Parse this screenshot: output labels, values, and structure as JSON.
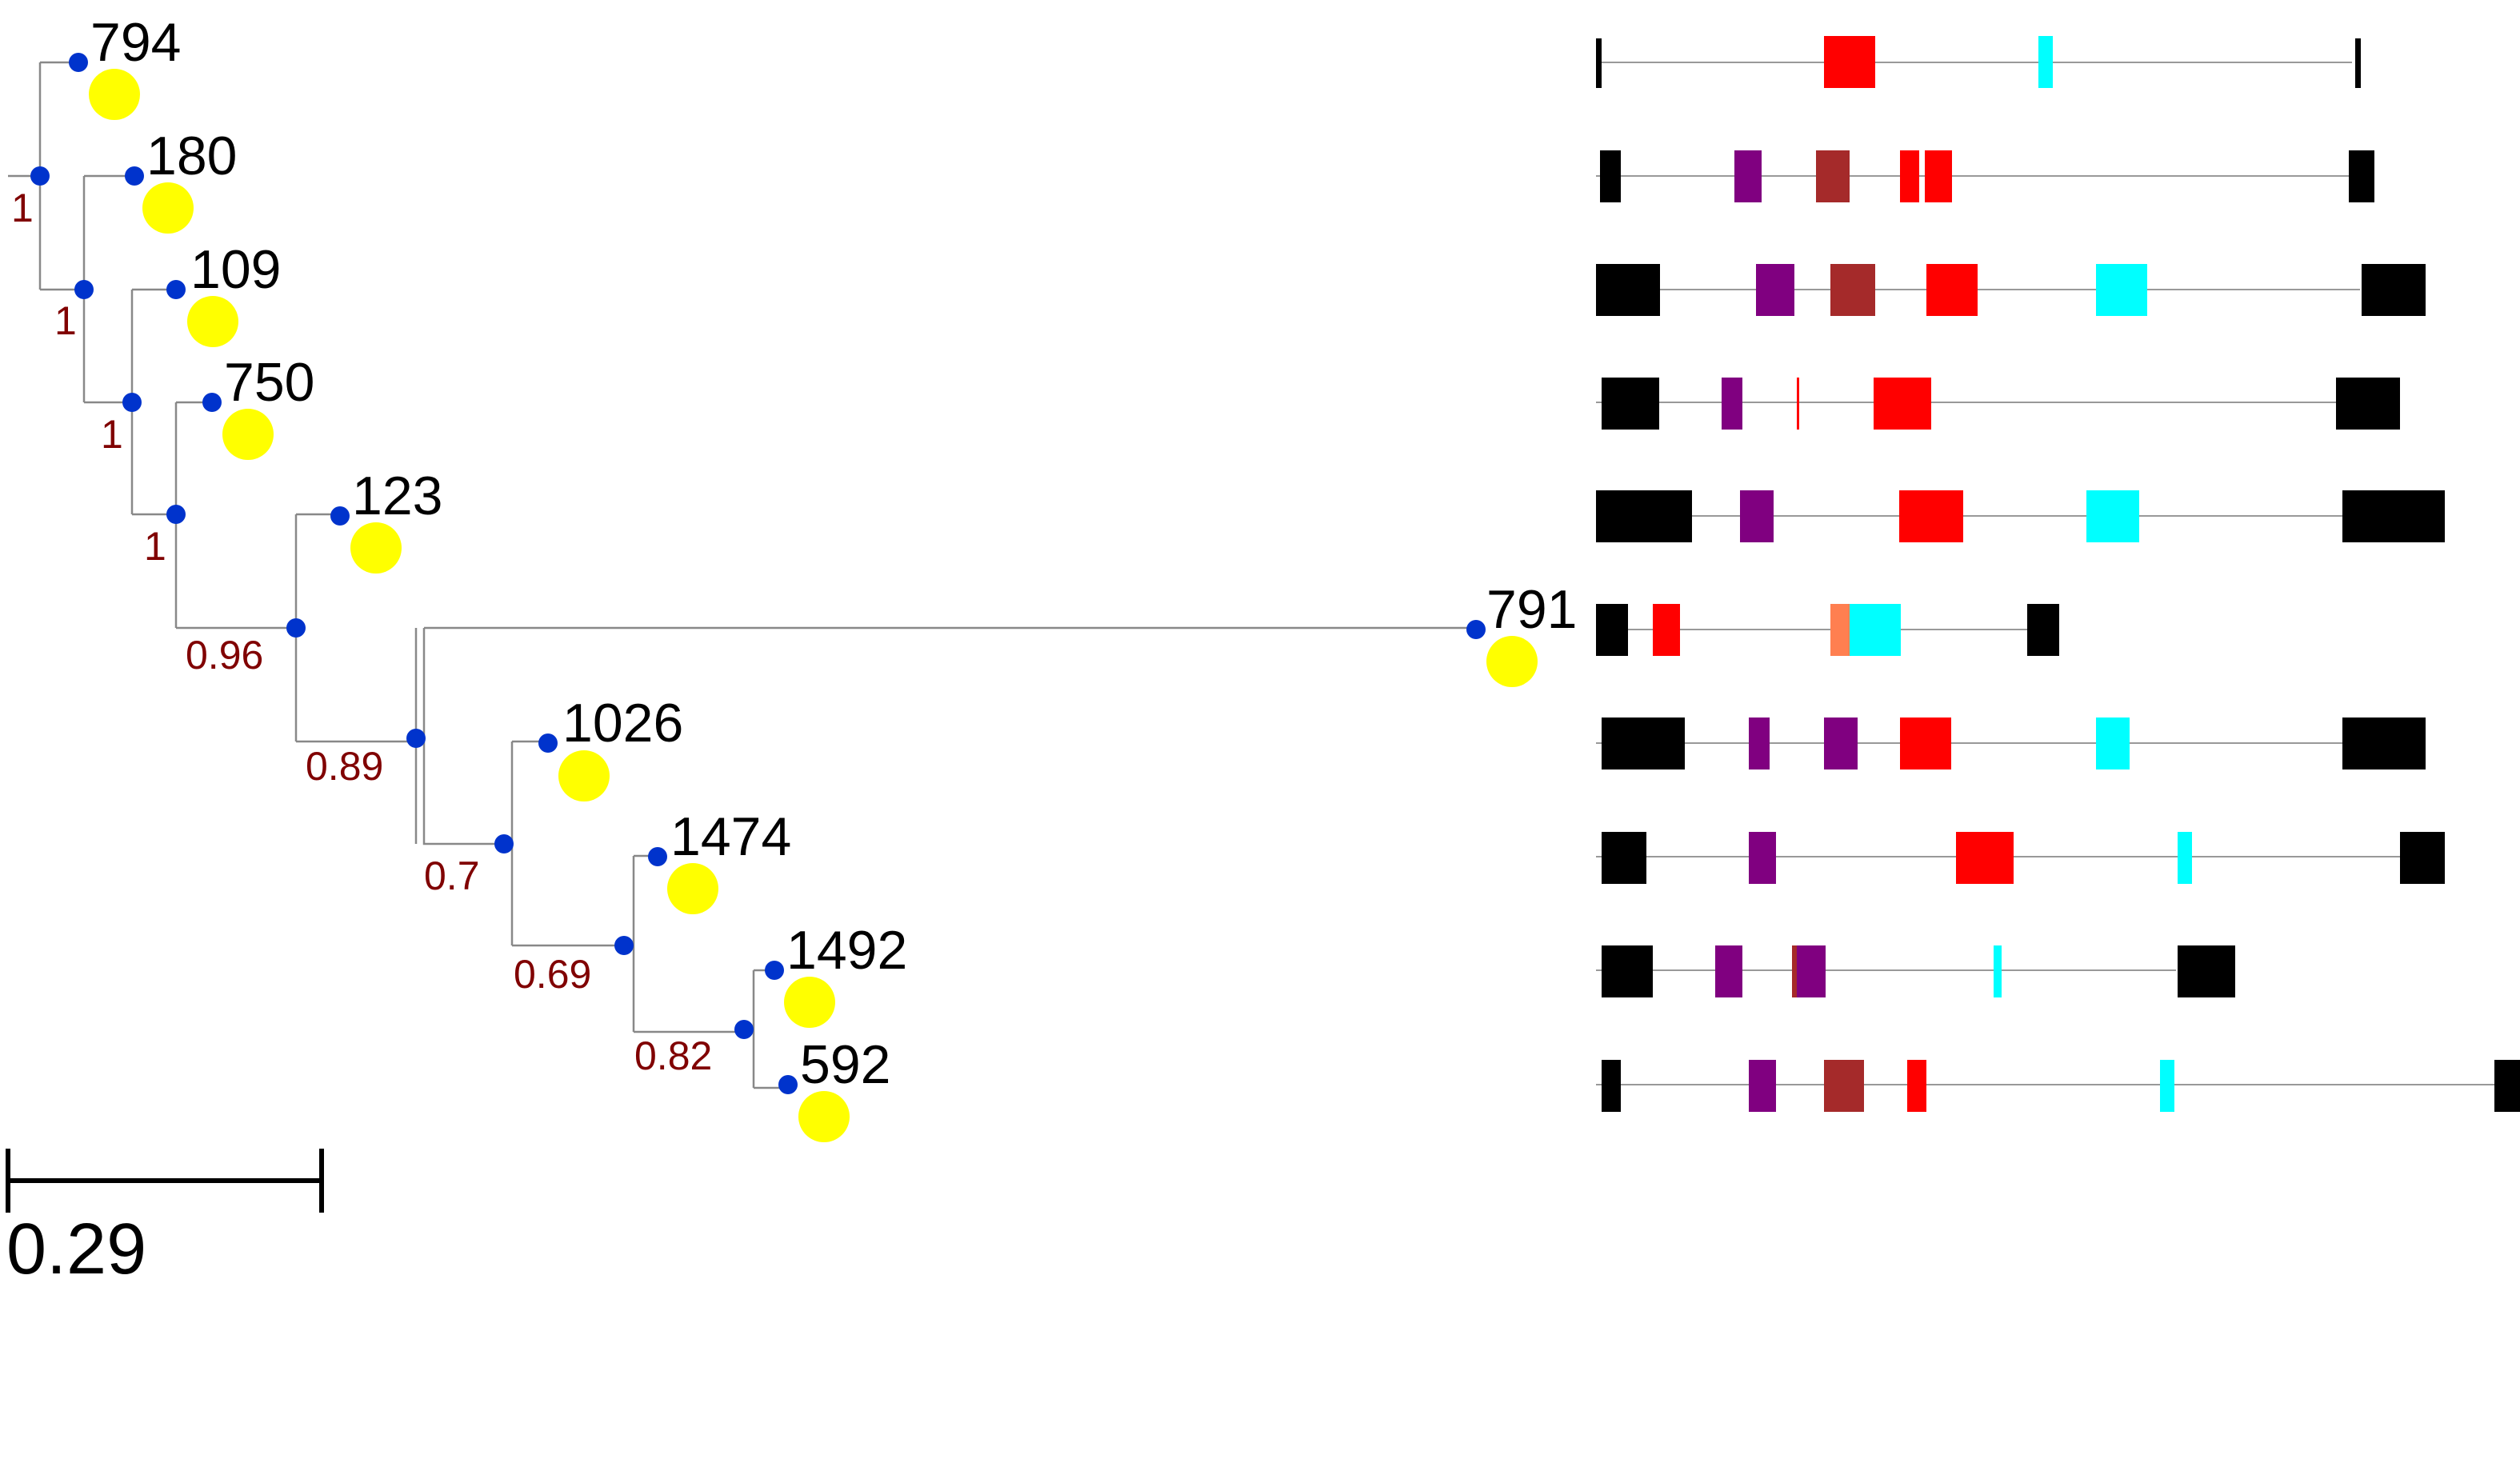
{
  "tree": {
    "leaves": [
      {
        "id": "794"
      },
      {
        "id": "180"
      },
      {
        "id": "109"
      },
      {
        "id": "750"
      },
      {
        "id": "123"
      },
      {
        "id": "791"
      },
      {
        "id": "1026"
      },
      {
        "id": "1474"
      },
      {
        "id": "1492"
      },
      {
        "id": "592"
      }
    ],
    "support_values": [
      "1",
      "1",
      "1",
      "1",
      "0.96",
      "0.89",
      "0.7",
      "0.69",
      "0.82"
    ],
    "scale_bar": {
      "value": "0.29"
    }
  },
  "domain_colors": {
    "terminal": "#000000",
    "purple": "#800080",
    "brown": "#A52A2A",
    "red": "#FF0000",
    "cyan": "#00FFFF",
    "coral": "#FF7F50",
    "backbone": "#999999"
  },
  "node_colors": {
    "internal": "#0033CC",
    "leaf": "#FFFF00",
    "branch": "#888888"
  }
}
